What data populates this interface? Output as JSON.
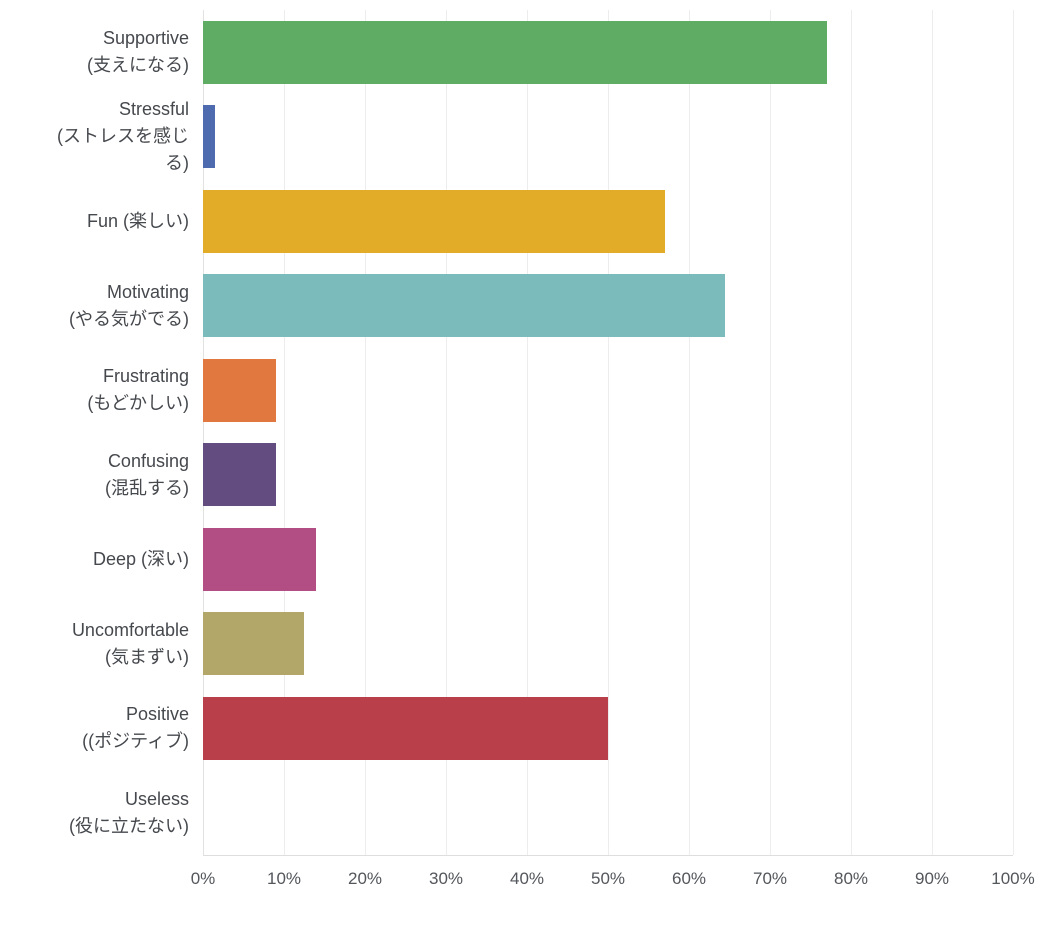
{
  "chart_data": {
    "type": "bar",
    "orientation": "horizontal",
    "title": "",
    "xlabel": "",
    "ylabel": "",
    "xlim": [
      0,
      100
    ],
    "grid": true,
    "legend_position": "none",
    "x_tick_labels": [
      "0%",
      "10%",
      "20%",
      "30%",
      "40%",
      "50%",
      "60%",
      "70%",
      "80%",
      "90%",
      "100%"
    ],
    "categories": [
      "Supportive\n(支えになる)",
      "Stressful\n(ストレスを感じ\nる)",
      "Fun (楽しい)",
      "Motivating\n(やる気がでる)",
      "Frustrating\n(もどかしい)",
      "Confusing\n(混乱する)",
      "Deep (深い)",
      "Uncomfortable\n(気まずい)",
      "Positive\n((ポジティブ)",
      "Useless\n(役に立たない)"
    ],
    "values": [
      77,
      1.5,
      57,
      64.5,
      9,
      9,
      14,
      12.5,
      50,
      0
    ],
    "bar_colors": [
      "#5fad64",
      "#4f6bb0",
      "#e3ac28",
      "#7cbbbc",
      "#e0783f",
      "#624c80",
      "#b34e84",
      "#b2a768",
      "#b9404b",
      null
    ]
  },
  "style": {
    "gridline_color": "#ededed",
    "axis_line_color": "#e2e2e2",
    "label_color": "#45484d",
    "tick_color": "#53565b",
    "background": "#ffffff"
  }
}
